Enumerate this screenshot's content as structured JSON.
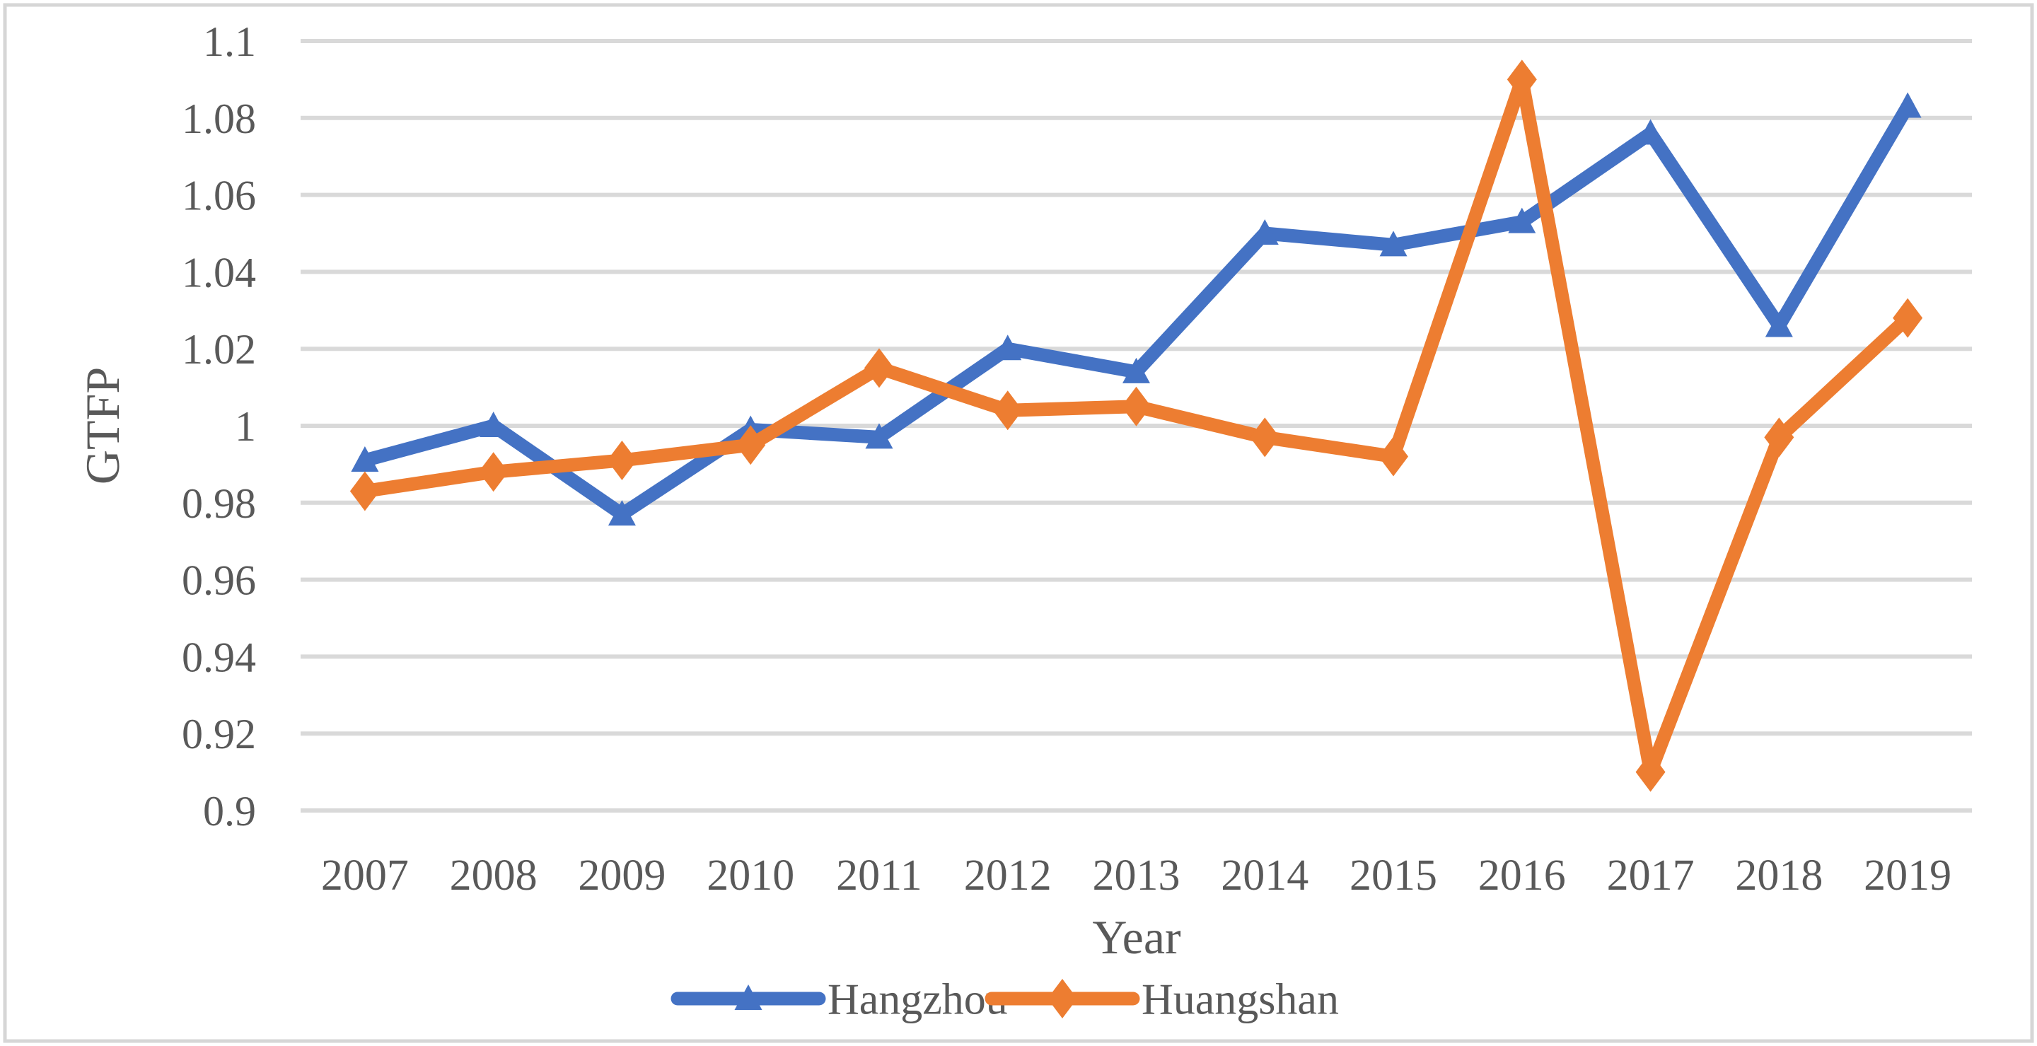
{
  "figure": {
    "kind": "excel-style-line-chart",
    "background": "#FFFFFF",
    "border_color": "#D6D6D6"
  },
  "colors": {
    "hangzhou_blue": "#4472C4",
    "huangshan_orange": "#ED7D31",
    "gridline": "#D9D9D9",
    "text": "#595959"
  },
  "chart_data": {
    "type": "line",
    "title": "",
    "xlabel": "Year",
    "ylabel": "GTFP",
    "categories": [
      "2007",
      "2008",
      "2009",
      "2010",
      "2011",
      "2012",
      "2013",
      "2014",
      "2015",
      "2016",
      "2017",
      "2018",
      "2019"
    ],
    "series": [
      {
        "name": "Hangzhou",
        "color": "#4472C4",
        "marker": "triangle",
        "values": [
          0.991,
          1.0,
          0.977,
          0.999,
          0.997,
          1.02,
          1.014,
          1.05,
          1.047,
          1.053,
          1.076,
          1.026,
          1.083
        ]
      },
      {
        "name": "Huangshan",
        "color": "#ED7D31",
        "marker": "diamond",
        "values": [
          0.983,
          0.988,
          0.991,
          0.995,
          1.015,
          1.004,
          1.005,
          0.997,
          0.992,
          1.09,
          0.91,
          0.997,
          1.028
        ]
      }
    ],
    "ylim": [
      0.9,
      1.1
    ],
    "ytick_step": 0.02,
    "ytick_labels": [
      "1.1",
      "1.08",
      "1.06",
      "1.04",
      "1.02",
      "1",
      "0.98",
      "0.96",
      "0.94",
      "0.92",
      "0.9"
    ],
    "grid": "horizontal-only",
    "legend_position": "bottom-center",
    "legend": [
      "Hangzhou",
      "Huangshan"
    ]
  }
}
